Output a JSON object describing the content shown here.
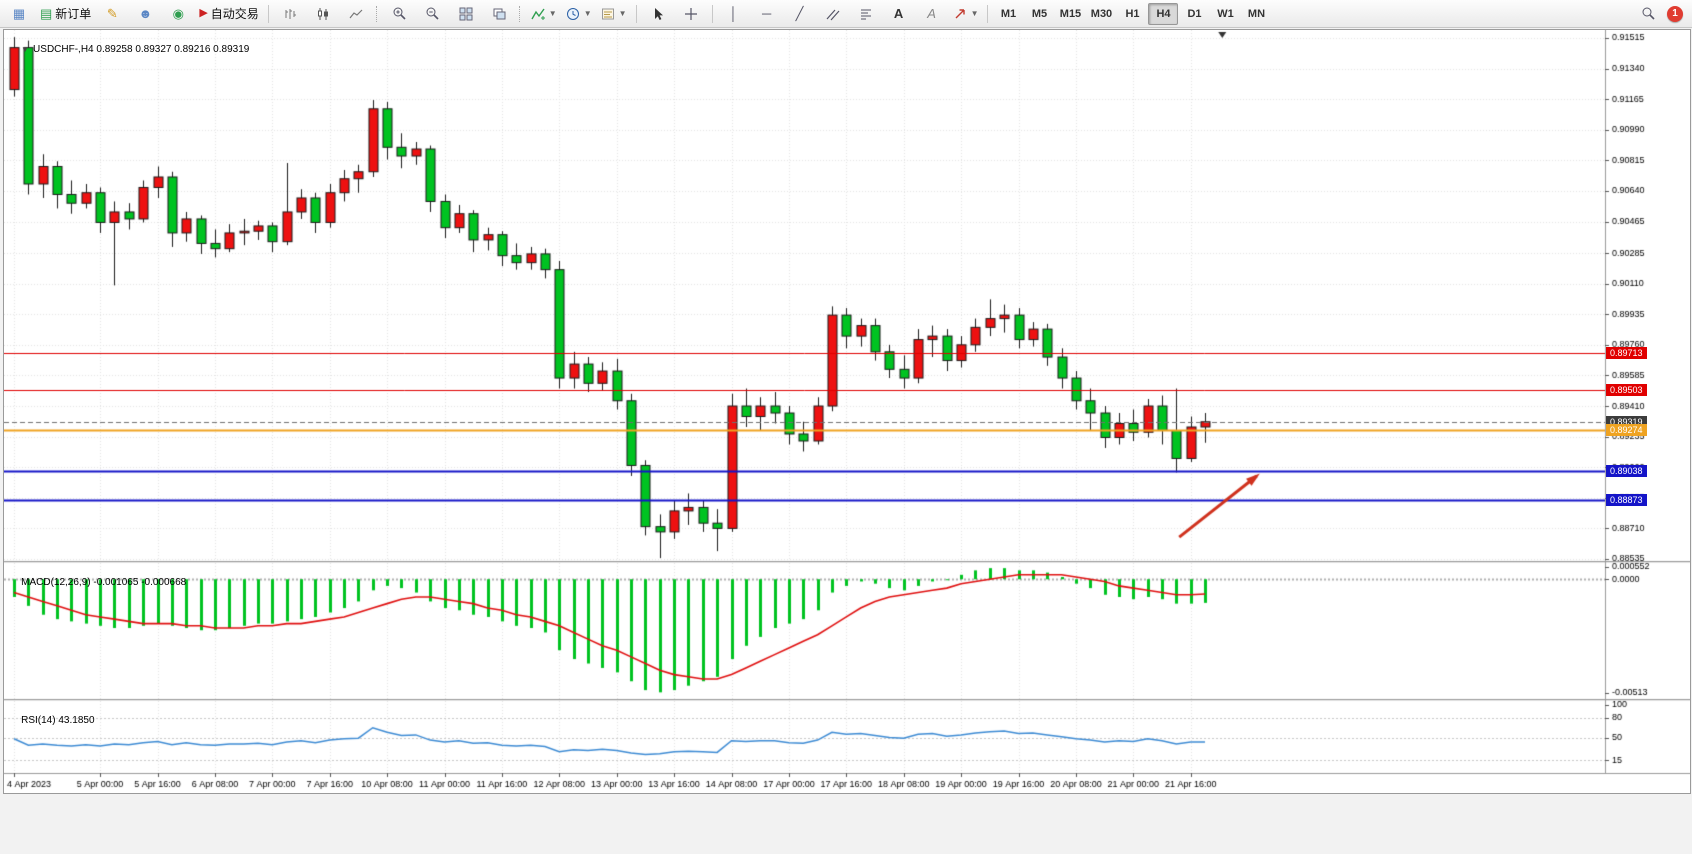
{
  "toolbar": {
    "new_order_label": "新订单",
    "autotrading_label": "自动交易",
    "notification_count": "1",
    "timeframes": {
      "items": [
        "M1",
        "M5",
        "M15",
        "M30",
        "H1",
        "H4",
        "D1",
        "W1",
        "MN"
      ],
      "active": "H4"
    }
  },
  "chart_data": {
    "type": "candlestick+indicators",
    "main_pane": {
      "title": "USDCHF-,H4",
      "ohlc": "0.89258 0.89327 0.89216 0.89319"
    },
    "bull_color": "#ee1111",
    "bear_color": "#00c321",
    "wick_color": "#1b1b1b",
    "price_axis": {
      "min": 0.88535,
      "max": 0.91515,
      "labels": [
        "0.91515",
        "0.91340",
        "0.91165",
        "0.90990",
        "0.90815",
        "0.90640",
        "0.90465",
        "0.90285",
        "0.90110",
        "0.89935",
        "0.89760",
        "0.89585",
        "0.89410",
        "0.89235",
        "0.89060",
        "0.88885",
        "0.88710",
        "0.88535"
      ]
    },
    "time_axis": {
      "labels": [
        "4 Apr 2023",
        "5 Apr 00:00",
        "5 Apr 16:00",
        "6 Apr 08:00",
        "7 Apr 00:00",
        "7 Apr 16:00",
        "10 Apr 08:00",
        "11 Apr 00:00",
        "11 Apr 16:00",
        "12 Apr 08:00",
        "13 Apr 00:00",
        "13 Apr 16:00",
        "14 Apr 08:00",
        "17 Apr 00:00",
        "17 Apr 16:00",
        "18 Apr 08:00",
        "19 Apr 00:00",
        "19 Apr 16:00",
        "20 Apr 08:00",
        "21 Apr 00:00",
        "21 Apr 16:00"
      ],
      "indices": [
        0,
        6,
        10,
        14,
        18,
        22,
        26,
        30,
        34,
        38,
        42,
        46,
        50,
        54,
        58,
        62,
        66,
        70,
        74,
        78,
        82
      ]
    },
    "candles": [
      [
        0.9122,
        0.9152,
        0.9118,
        0.9146
      ],
      [
        0.9146,
        0.915,
        0.9062,
        0.9068
      ],
      [
        0.9068,
        0.9085,
        0.906,
        0.9078
      ],
      [
        0.9078,
        0.9081,
        0.9054,
        0.9062
      ],
      [
        0.9062,
        0.907,
        0.9051,
        0.9057
      ],
      [
        0.9057,
        0.9068,
        0.9054,
        0.9063
      ],
      [
        0.9063,
        0.9066,
        0.904,
        0.9046
      ],
      [
        0.9046,
        0.9058,
        0.901,
        0.9052
      ],
      [
        0.9052,
        0.9057,
        0.9042,
        0.9048
      ],
      [
        0.9048,
        0.907,
        0.9046,
        0.9066
      ],
      [
        0.9066,
        0.9078,
        0.906,
        0.9072
      ],
      [
        0.9072,
        0.9075,
        0.9032,
        0.904
      ],
      [
        0.904,
        0.9052,
        0.9035,
        0.9048
      ],
      [
        0.9048,
        0.905,
        0.9028,
        0.9034
      ],
      [
        0.9034,
        0.9042,
        0.9026,
        0.9031
      ],
      [
        0.9031,
        0.9045,
        0.9029,
        0.904
      ],
      [
        0.904,
        0.9048,
        0.9033,
        0.9041
      ],
      [
        0.9041,
        0.9047,
        0.9036,
        0.9044
      ],
      [
        0.9044,
        0.9046,
        0.9029,
        0.9035
      ],
      [
        0.9035,
        0.908,
        0.9033,
        0.9052
      ],
      [
        0.9052,
        0.9065,
        0.9048,
        0.906
      ],
      [
        0.906,
        0.9063,
        0.904,
        0.9046
      ],
      [
        0.9046,
        0.9068,
        0.9043,
        0.9063
      ],
      [
        0.9063,
        0.9076,
        0.9058,
        0.9071
      ],
      [
        0.9071,
        0.9079,
        0.9063,
        0.9075
      ],
      [
        0.9075,
        0.9116,
        0.9072,
        0.9111
      ],
      [
        0.9111,
        0.9115,
        0.9082,
        0.9089
      ],
      [
        0.9089,
        0.9097,
        0.9077,
        0.9084
      ],
      [
        0.9084,
        0.9092,
        0.9079,
        0.9088
      ],
      [
        0.9088,
        0.909,
        0.9052,
        0.9058
      ],
      [
        0.9058,
        0.9062,
        0.9037,
        0.9043
      ],
      [
        0.9043,
        0.9056,
        0.904,
        0.9051
      ],
      [
        0.9051,
        0.9053,
        0.9029,
        0.9036
      ],
      [
        0.9036,
        0.9043,
        0.903,
        0.9039
      ],
      [
        0.9039,
        0.9041,
        0.9021,
        0.9027
      ],
      [
        0.9027,
        0.9034,
        0.9019,
        0.9023
      ],
      [
        0.9023,
        0.9032,
        0.9019,
        0.9028
      ],
      [
        0.9028,
        0.9031,
        0.9014,
        0.9019
      ],
      [
        0.9019,
        0.9024,
        0.8951,
        0.8957
      ],
      [
        0.8957,
        0.8972,
        0.8951,
        0.8965
      ],
      [
        0.8965,
        0.8969,
        0.8949,
        0.8954
      ],
      [
        0.8954,
        0.8966,
        0.895,
        0.8961
      ],
      [
        0.8961,
        0.8968,
        0.8939,
        0.8944
      ],
      [
        0.8944,
        0.8948,
        0.8901,
        0.8907
      ],
      [
        0.8907,
        0.891,
        0.8867,
        0.8872
      ],
      [
        0.8872,
        0.8879,
        0.8854,
        0.8869
      ],
      [
        0.8869,
        0.8887,
        0.8865,
        0.8881
      ],
      [
        0.8881,
        0.8891,
        0.8873,
        0.8883
      ],
      [
        0.8883,
        0.8887,
        0.8869,
        0.8874
      ],
      [
        0.8874,
        0.8882,
        0.8858,
        0.8871
      ],
      [
        0.8871,
        0.8948,
        0.8869,
        0.8941
      ],
      [
        0.8941,
        0.8951,
        0.8929,
        0.8935
      ],
      [
        0.8935,
        0.8946,
        0.8927,
        0.8941
      ],
      [
        0.8941,
        0.8949,
        0.8931,
        0.8937
      ],
      [
        0.8937,
        0.8941,
        0.8919,
        0.8925
      ],
      [
        0.8925,
        0.8932,
        0.8915,
        0.8921
      ],
      [
        0.8921,
        0.8946,
        0.8919,
        0.8941
      ],
      [
        0.8941,
        0.8998,
        0.8938,
        0.8993
      ],
      [
        0.8993,
        0.8997,
        0.8974,
        0.8981
      ],
      [
        0.8981,
        0.8991,
        0.8975,
        0.8987
      ],
      [
        0.8987,
        0.8991,
        0.8967,
        0.8972
      ],
      [
        0.8972,
        0.8976,
        0.8957,
        0.8962
      ],
      [
        0.8962,
        0.897,
        0.8951,
        0.8957
      ],
      [
        0.8957,
        0.8985,
        0.8954,
        0.8979
      ],
      [
        0.8979,
        0.8987,
        0.8969,
        0.8981
      ],
      [
        0.8981,
        0.8985,
        0.8961,
        0.8967
      ],
      [
        0.8967,
        0.8981,
        0.8963,
        0.8976
      ],
      [
        0.8976,
        0.8991,
        0.8972,
        0.8986
      ],
      [
        0.8986,
        0.9002,
        0.8981,
        0.8991
      ],
      [
        0.8991,
        0.8999,
        0.8983,
        0.8993
      ],
      [
        0.8993,
        0.8997,
        0.8974,
        0.8979
      ],
      [
        0.8979,
        0.8989,
        0.8975,
        0.8985
      ],
      [
        0.8985,
        0.8988,
        0.8964,
        0.8969
      ],
      [
        0.8969,
        0.8974,
        0.8951,
        0.8957
      ],
      [
        0.8957,
        0.8961,
        0.8939,
        0.8944
      ],
      [
        0.8944,
        0.8951,
        0.8927,
        0.8937
      ],
      [
        0.8937,
        0.8941,
        0.8917,
        0.8923
      ],
      [
        0.8923,
        0.8937,
        0.8919,
        0.8931
      ],
      [
        0.8931,
        0.8939,
        0.8921,
        0.8926
      ],
      [
        0.8926,
        0.8945,
        0.8923,
        0.8941
      ],
      [
        0.8941,
        0.8947,
        0.8919,
        0.8927
      ],
      [
        0.8927,
        0.8951,
        0.8903,
        0.8911
      ],
      [
        0.8911,
        0.8935,
        0.8909,
        0.8929
      ],
      [
        0.8929,
        0.8937,
        0.892,
        0.8932
      ]
    ],
    "hlines": [
      {
        "price": 0.89713,
        "color": "#e00000",
        "width": 1,
        "style": "solid"
      },
      {
        "price": 0.89503,
        "color": "#e00000",
        "width": 1,
        "style": "solid"
      },
      {
        "price": 0.89319,
        "color": "#707070",
        "width": 1,
        "style": "dash"
      },
      {
        "price": 0.89274,
        "color": "#efa321",
        "width": 2,
        "style": "solid"
      },
      {
        "price": 0.89038,
        "color": "#1414c8",
        "width": 2,
        "style": "solid"
      },
      {
        "price": 0.88873,
        "color": "#1414c8",
        "width": 2,
        "style": "solid"
      }
    ],
    "price_tags": [
      {
        "label": "0.89713",
        "bg": "#e00000"
      },
      {
        "label": "0.89503",
        "bg": "#e00000"
      },
      {
        "label": "0.89319",
        "bg": "#3c3c3c"
      },
      {
        "label": "0.89274",
        "bg": "#efa321"
      },
      {
        "label": "0.89038",
        "bg": "#1414c8"
      },
      {
        "label": "0.88873",
        "bg": "#1414c8"
      }
    ],
    "macd": {
      "label": "MACD(12,26,9)",
      "values": "-0.001065 -0.000668",
      "range": {
        "max": 0.000552,
        "min": -0.00513
      },
      "scale_labels": [
        {
          "text": "0.000552",
          "value": 0.000552
        },
        {
          "text": "0.0000",
          "value": 0
        },
        {
          "text": "-0.00513",
          "value": -0.00513
        }
      ],
      "histogram_color": "#00c321",
      "signal_color": "#e01010",
      "histogram": [
        -0.0008,
        -0.0012,
        -0.0016,
        -0.0018,
        -0.0019,
        -0.002,
        -0.0021,
        -0.0022,
        -0.0022,
        -0.0021,
        -0.002,
        -0.0021,
        -0.0022,
        -0.0023,
        -0.0023,
        -0.0022,
        -0.0021,
        -0.002,
        -0.002,
        -0.0019,
        -0.0018,
        -0.0017,
        -0.0015,
        -0.0013,
        -0.001,
        -0.0005,
        -0.0003,
        -0.0004,
        -0.0006,
        -0.001,
        -0.0013,
        -0.0014,
        -0.0016,
        -0.0017,
        -0.0019,
        -0.0021,
        -0.0022,
        -0.0024,
        -0.0032,
        -0.0036,
        -0.0038,
        -0.004,
        -0.0042,
        -0.0046,
        -0.005,
        -0.0051,
        -0.005,
        -0.0048,
        -0.0046,
        -0.0044,
        -0.0036,
        -0.003,
        -0.0026,
        -0.0022,
        -0.002,
        -0.0018,
        -0.0014,
        -0.0006,
        -0.0003,
        -0.0001,
        -0.0002,
        -0.0004,
        -0.0005,
        -0.0003,
        -0.0001,
        0.0,
        0.0002,
        0.0004,
        0.0005,
        0.0005,
        0.0004,
        0.0004,
        0.0003,
        0.0001,
        -0.0002,
        -0.0004,
        -0.0007,
        -0.0008,
        -0.0009,
        -0.0008,
        -0.0009,
        -0.0011,
        -0.0011,
        -0.001065
      ],
      "signal": [
        -0.0006,
        -0.0008,
        -0.001,
        -0.0012,
        -0.0014,
        -0.0016,
        -0.0017,
        -0.0018,
        -0.0019,
        -0.002,
        -0.002,
        -0.002,
        -0.0021,
        -0.0021,
        -0.0022,
        -0.0022,
        -0.0022,
        -0.0021,
        -0.0021,
        -0.002,
        -0.002,
        -0.0019,
        -0.0018,
        -0.0017,
        -0.0015,
        -0.0013,
        -0.0011,
        -0.0009,
        -0.0008,
        -0.0008,
        -0.0009,
        -0.001,
        -0.0011,
        -0.0013,
        -0.0014,
        -0.0016,
        -0.0017,
        -0.0019,
        -0.0021,
        -0.0024,
        -0.0027,
        -0.003,
        -0.0032,
        -0.0035,
        -0.0038,
        -0.0041,
        -0.0043,
        -0.0044,
        -0.0045,
        -0.0045,
        -0.0043,
        -0.004,
        -0.0037,
        -0.0034,
        -0.0031,
        -0.0028,
        -0.0025,
        -0.0021,
        -0.0017,
        -0.0013,
        -0.001,
        -0.0008,
        -0.0007,
        -0.0006,
        -0.0005,
        -0.0004,
        -0.0002,
        -0.0001,
        0.0,
        0.0001,
        0.0002,
        0.0002,
        0.0002,
        0.0002,
        0.0001,
        0.0,
        -0.0001,
        -0.0003,
        -0.0004,
        -0.0005,
        -0.0006,
        -0.0007,
        -0.0007,
        -0.000668
      ]
    },
    "rsi": {
      "label": "RSI(14)",
      "value": "43.1850",
      "line_color": "#3d8bd4",
      "range": {
        "min": 0,
        "max": 100
      },
      "levels": [
        80,
        50,
        15
      ],
      "scale_labels": [
        {
          "text": "100",
          "value": 100
        },
        {
          "text": "80",
          "value": 80
        },
        {
          "text": "50",
          "value": 50
        },
        {
          "text": "15",
          "value": 15
        }
      ],
      "values": [
        48,
        38,
        40,
        38,
        37,
        39,
        37,
        40,
        39,
        42,
        44,
        39,
        42,
        39,
        38,
        40,
        40,
        41,
        39,
        43,
        45,
        42,
        46,
        48,
        49,
        65,
        58,
        53,
        54,
        46,
        43,
        45,
        41,
        42,
        38,
        37,
        38,
        36,
        28,
        31,
        30,
        32,
        30,
        26,
        24,
        25,
        28,
        29,
        28,
        27,
        45,
        44,
        45,
        45,
        42,
        41,
        46,
        58,
        55,
        56,
        53,
        50,
        49,
        55,
        56,
        52,
        54,
        57,
        59,
        60,
        56,
        57,
        54,
        51,
        48,
        46,
        43,
        45,
        44,
        48,
        45,
        40,
        43,
        43.185
      ]
    },
    "annotations": {
      "arrow": {
        "from": {
          "index": 81.2,
          "price": 0.8866
        },
        "to": {
          "index": 86.6,
          "price": 0.8901
        },
        "color": "#d0321e"
      },
      "shift_marker_index": 84.2
    }
  }
}
